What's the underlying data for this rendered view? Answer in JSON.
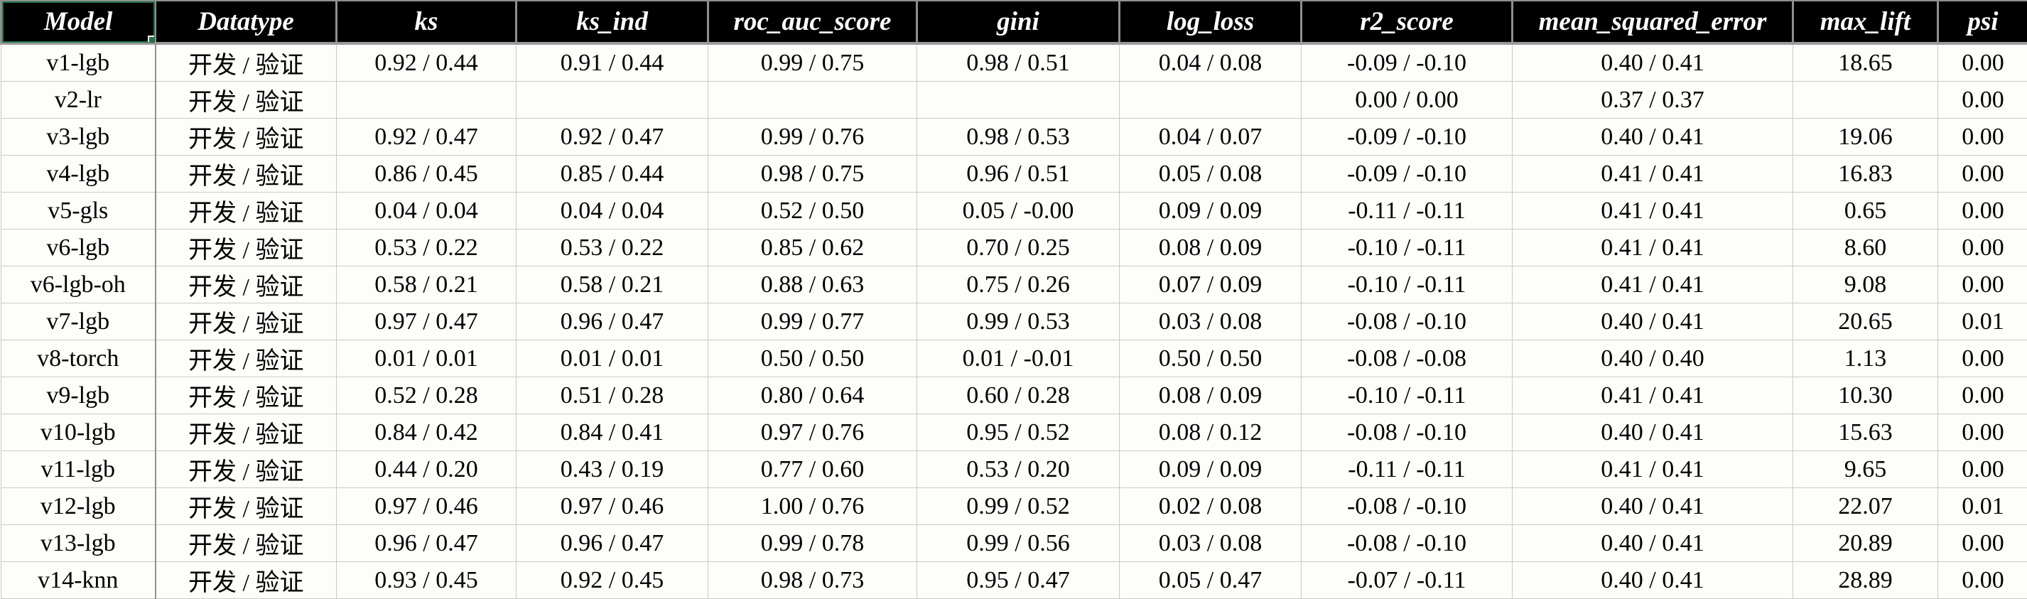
{
  "app": {
    "kind": "spreadsheet-model-metrics-report",
    "colors": {
      "header_bg": "#000000",
      "header_text": "#ffffff",
      "header_gridline": "#8f8f8f",
      "data_gridline": "#c9c9c9",
      "row_bg": "#fdfdfa",
      "selection_accent": "#217346"
    }
  },
  "table": {
    "selected_header": "Model",
    "columns": [
      {
        "key": "model",
        "label": "Model"
      },
      {
        "key": "datatype",
        "label": "Datatype"
      },
      {
        "key": "ks",
        "label": "ks"
      },
      {
        "key": "ks_ind",
        "label": "ks_ind"
      },
      {
        "key": "roc_auc_score",
        "label": "roc_auc_score"
      },
      {
        "key": "gini",
        "label": "gini"
      },
      {
        "key": "log_loss",
        "label": "log_loss"
      },
      {
        "key": "r2_score",
        "label": "r2_score"
      },
      {
        "key": "mean_squared_error",
        "label": "mean_squared_error"
      },
      {
        "key": "max_lift",
        "label": "max_lift"
      },
      {
        "key": "psi",
        "label": "psi"
      }
    ],
    "rows": [
      [
        "v1-lgb",
        "开发 / 验证",
        "0.92 / 0.44",
        "0.91 / 0.44",
        "0.99 / 0.75",
        "0.98 / 0.51",
        "0.04 / 0.08",
        "-0.09 / -0.10",
        "0.40 / 0.41",
        "18.65",
        "0.00"
      ],
      [
        "v2-lr",
        "开发 / 验证",
        "",
        "",
        "",
        "",
        "",
        "0.00 / 0.00",
        "0.37 / 0.37",
        "",
        "0.00"
      ],
      [
        "v3-lgb",
        "开发 / 验证",
        "0.92 / 0.47",
        "0.92 / 0.47",
        "0.99 / 0.76",
        "0.98 / 0.53",
        "0.04 / 0.07",
        "-0.09 / -0.10",
        "0.40 / 0.41",
        "19.06",
        "0.00"
      ],
      [
        "v4-lgb",
        "开发 / 验证",
        "0.86 / 0.45",
        "0.85 / 0.44",
        "0.98 / 0.75",
        "0.96 / 0.51",
        "0.05 / 0.08",
        "-0.09 / -0.10",
        "0.41 / 0.41",
        "16.83",
        "0.00"
      ],
      [
        "v5-gls",
        "开发 / 验证",
        "0.04 / 0.04",
        "0.04 / 0.04",
        "0.52 / 0.50",
        "0.05 / -0.00",
        "0.09 / 0.09",
        "-0.11 / -0.11",
        "0.41 / 0.41",
        "0.65",
        "0.00"
      ],
      [
        "v6-lgb",
        "开发 / 验证",
        "0.53 / 0.22",
        "0.53 / 0.22",
        "0.85 / 0.62",
        "0.70 / 0.25",
        "0.08 / 0.09",
        "-0.10 / -0.11",
        "0.41 / 0.41",
        "8.60",
        "0.00"
      ],
      [
        "v6-lgb-oh",
        "开发 / 验证",
        "0.58 / 0.21",
        "0.58 / 0.21",
        "0.88 / 0.63",
        "0.75 / 0.26",
        "0.07 / 0.09",
        "-0.10 / -0.11",
        "0.41 / 0.41",
        "9.08",
        "0.00"
      ],
      [
        "v7-lgb",
        "开发 / 验证",
        "0.97 / 0.47",
        "0.96 / 0.47",
        "0.99 / 0.77",
        "0.99 / 0.53",
        "0.03 / 0.08",
        "-0.08 / -0.10",
        "0.40 / 0.41",
        "20.65",
        "0.01"
      ],
      [
        "v8-torch",
        "开发 / 验证",
        "0.01 / 0.01",
        "0.01 / 0.01",
        "0.50 / 0.50",
        "0.01 / -0.01",
        "0.50 / 0.50",
        "-0.08 / -0.08",
        "0.40 / 0.40",
        "1.13",
        "0.00"
      ],
      [
        "v9-lgb",
        "开发 / 验证",
        "0.52 / 0.28",
        "0.51 / 0.28",
        "0.80 / 0.64",
        "0.60 / 0.28",
        "0.08 / 0.09",
        "-0.10 / -0.11",
        "0.41 / 0.41",
        "10.30",
        "0.00"
      ],
      [
        "v10-lgb",
        "开发 / 验证",
        "0.84 / 0.42",
        "0.84 / 0.41",
        "0.97 / 0.76",
        "0.95 / 0.52",
        "0.08 / 0.12",
        "-0.08 / -0.10",
        "0.40 / 0.41",
        "15.63",
        "0.00"
      ],
      [
        "v11-lgb",
        "开发 / 验证",
        "0.44 / 0.20",
        "0.43 / 0.19",
        "0.77 / 0.60",
        "0.53 / 0.20",
        "0.09 / 0.09",
        "-0.11 / -0.11",
        "0.41 / 0.41",
        "9.65",
        "0.00"
      ],
      [
        "v12-lgb",
        "开发 / 验证",
        "0.97 / 0.46",
        "0.97 / 0.46",
        "1.00 / 0.76",
        "0.99 / 0.52",
        "0.02 / 0.08",
        "-0.08 / -0.10",
        "0.40 / 0.41",
        "22.07",
        "0.01"
      ],
      [
        "v13-lgb",
        "开发 / 验证",
        "0.96 / 0.47",
        "0.96 / 0.47",
        "0.99 / 0.78",
        "0.99 / 0.56",
        "0.03 / 0.08",
        "-0.08 / -0.10",
        "0.40 / 0.41",
        "20.89",
        "0.00"
      ],
      [
        "v14-knn",
        "开发 / 验证",
        "0.93 / 0.45",
        "0.92 / 0.45",
        "0.98 / 0.73",
        "0.95 / 0.47",
        "0.05 / 0.47",
        "-0.07 / -0.11",
        "0.40 / 0.41",
        "28.89",
        "0.00"
      ]
    ]
  }
}
